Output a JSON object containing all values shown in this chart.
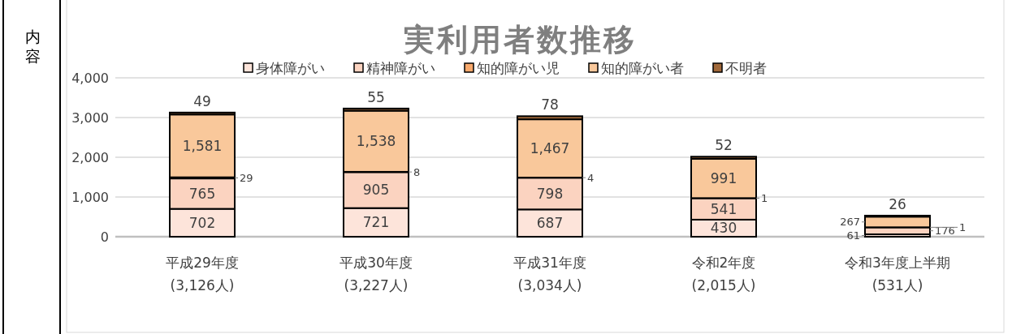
{
  "chart_data": {
    "type": "bar",
    "stacked": true,
    "title": "実利用者数推移",
    "categories": [
      "平成29年度\n(3,126人)",
      "平成30年度\n(3,227人)",
      "平成31年度\n(3,034人)",
      "令和2年度\n(2,015人)",
      "令和3年度上半期\n(531人)"
    ],
    "series": [
      {
        "name": "身体障がい",
        "color": "#fde4da",
        "values": [
          702,
          721,
          687,
          430,
          61
        ],
        "value_labels": [
          "702",
          "721",
          "687",
          "430",
          "61"
        ]
      },
      {
        "name": "精神障がい",
        "color": "#fbd3c0",
        "values": [
          765,
          905,
          798,
          541,
          176
        ],
        "value_labels": [
          "765",
          "905",
          "798",
          "541",
          "176"
        ]
      },
      {
        "name": "知的障がい児",
        "color": "#f8a96c",
        "values": [
          29,
          8,
          4,
          1,
          1
        ],
        "value_labels": [
          "29",
          "8",
          "4",
          "1",
          "1"
        ]
      },
      {
        "name": "知的障がい者",
        "color": "#f9c89b",
        "values": [
          1581,
          1538,
          1467,
          991,
          267
        ],
        "value_labels": [
          "1,581",
          "1,538",
          "1,467",
          "991",
          "267"
        ]
      },
      {
        "name": "不明者",
        "color": "#a0683a",
        "values": [
          49,
          55,
          78,
          52,
          26
        ],
        "value_labels": [
          "49",
          "55",
          "78",
          "52",
          "26"
        ]
      }
    ],
    "ylim": [
      0,
      4000
    ],
    "yticks": [
      {
        "value": 0,
        "label": "0"
      },
      {
        "value": 1000,
        "label": "1,000"
      },
      {
        "value": 2000,
        "label": "2,000"
      },
      {
        "value": 3000,
        "label": "3,000"
      },
      {
        "value": 4000,
        "label": "4,000"
      }
    ],
    "grid": "y",
    "legend": "top",
    "data_labels": true,
    "annotations": [
      "内容"
    ]
  }
}
